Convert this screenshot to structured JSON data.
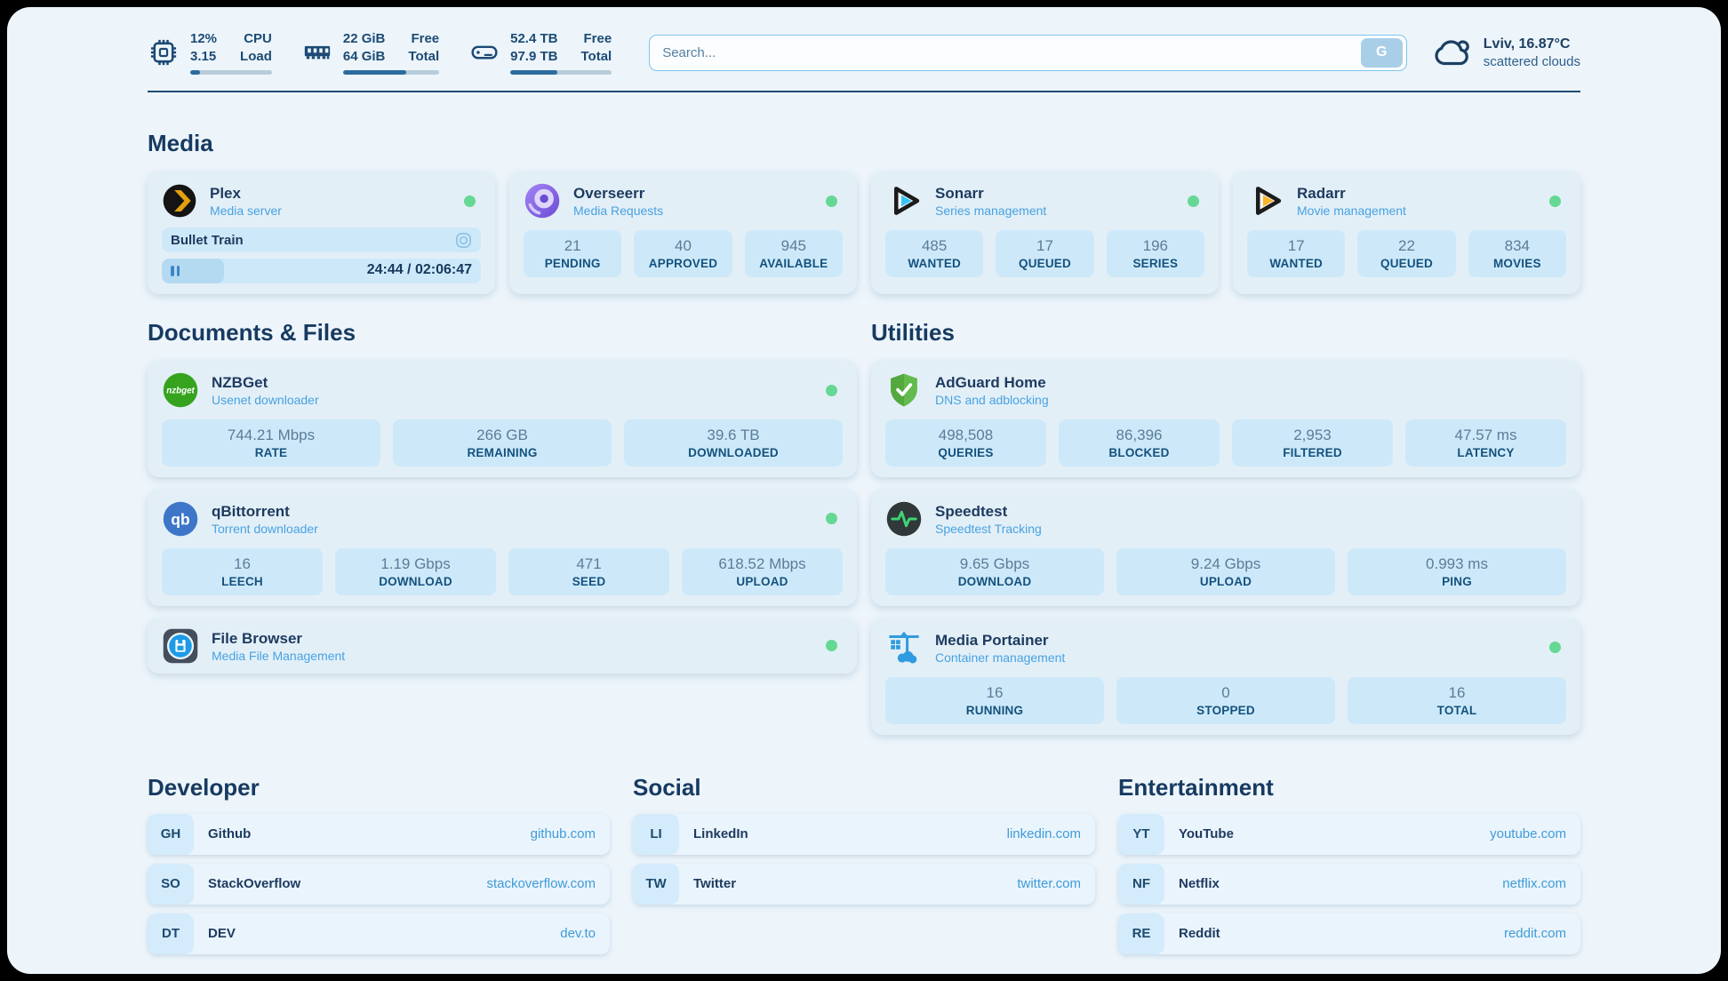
{
  "colors": {
    "panel_bg": "#edf5fb",
    "card_bg": "#e3eff7",
    "stat_bg": "#cde9f9",
    "accent_navy": "#1d3a5f",
    "subtitle_blue": "#47a2e2",
    "link_blue": "#3f9bd8",
    "status_green": "#65d894",
    "progress_fill": "#2d6b9e"
  },
  "topbar": {
    "cpu": {
      "pct": "12%",
      "load": "3.15",
      "label1": "CPU",
      "label2": "Load",
      "progress_pct": 12
    },
    "memory": {
      "free": "22 GiB",
      "total": "64 GiB",
      "label1": "Free",
      "label2": "Total",
      "progress_pct": 66
    },
    "disk": {
      "free": "52.4 TB",
      "total": "97.9 TB",
      "label1": "Free",
      "label2": "Total",
      "progress_pct": 46
    },
    "search": {
      "placeholder": "Search...",
      "button_label": "G"
    },
    "weather": {
      "location": "Lviv, 16.87°C",
      "condition": "scattered clouds"
    }
  },
  "media": {
    "heading": "Media",
    "plex": {
      "name": "Plex",
      "subtitle": "Media server",
      "now_playing": "Bullet Train",
      "time": "24:44 / 02:06:47",
      "progress_pct": 19.5
    },
    "overseerr": {
      "name": "Overseerr",
      "subtitle": "Media Requests",
      "stats": [
        {
          "value": "21",
          "label": "PENDING"
        },
        {
          "value": "40",
          "label": "APPROVED"
        },
        {
          "value": "945",
          "label": "AVAILABLE"
        }
      ]
    },
    "sonarr": {
      "name": "Sonarr",
      "subtitle": "Series management",
      "stats": [
        {
          "value": "485",
          "label": "WANTED"
        },
        {
          "value": "17",
          "label": "QUEUED"
        },
        {
          "value": "196",
          "label": "SERIES"
        }
      ]
    },
    "radarr": {
      "name": "Radarr",
      "subtitle": "Movie management",
      "stats": [
        {
          "value": "17",
          "label": "WANTED"
        },
        {
          "value": "22",
          "label": "QUEUED"
        },
        {
          "value": "834",
          "label": "MOVIES"
        }
      ]
    }
  },
  "documents": {
    "heading": "Documents & Files",
    "nzbget": {
      "name": "NZBGet",
      "subtitle": "Usenet downloader",
      "stats": [
        {
          "value": "744.21 Mbps",
          "label": "RATE"
        },
        {
          "value": "266 GB",
          "label": "REMAINING"
        },
        {
          "value": "39.6 TB",
          "label": "DOWNLOADED"
        }
      ]
    },
    "qbittorrent": {
      "name": "qBittorrent",
      "subtitle": "Torrent downloader",
      "stats": [
        {
          "value": "16",
          "label": "LEECH"
        },
        {
          "value": "1.19 Gbps",
          "label": "DOWNLOAD"
        },
        {
          "value": "471",
          "label": "SEED"
        },
        {
          "value": "618.52 Mbps",
          "label": "UPLOAD"
        }
      ]
    },
    "filebrowser": {
      "name": "File Browser",
      "subtitle": "Media File Management"
    }
  },
  "utilities": {
    "heading": "Utilities",
    "adguard": {
      "name": "AdGuard Home",
      "subtitle": "DNS and adblocking",
      "stats": [
        {
          "value": "498,508",
          "label": "QUERIES"
        },
        {
          "value": "86,396",
          "label": "BLOCKED"
        },
        {
          "value": "2,953",
          "label": "FILTERED"
        },
        {
          "value": "47.57 ms",
          "label": "LATENCY"
        }
      ]
    },
    "speedtest": {
      "name": "Speedtest",
      "subtitle": "Speedtest Tracking",
      "stats": [
        {
          "value": "9.65 Gbps",
          "label": "DOWNLOAD"
        },
        {
          "value": "9.24 Gbps",
          "label": "UPLOAD"
        },
        {
          "value": "0.993 ms",
          "label": "PING"
        }
      ]
    },
    "portainer": {
      "name": "Media Portainer",
      "subtitle": "Container management",
      "stats": [
        {
          "value": "16",
          "label": "RUNNING"
        },
        {
          "value": "0",
          "label": "STOPPED"
        },
        {
          "value": "16",
          "label": "TOTAL"
        }
      ]
    }
  },
  "links": {
    "developer": {
      "heading": "Developer",
      "items": [
        {
          "tag": "GH",
          "name": "Github",
          "url": "github.com"
        },
        {
          "tag": "SO",
          "name": "StackOverflow",
          "url": "stackoverflow.com"
        },
        {
          "tag": "DT",
          "name": "DEV",
          "url": "dev.to"
        }
      ]
    },
    "social": {
      "heading": "Social",
      "items": [
        {
          "tag": "LI",
          "name": "LinkedIn",
          "url": "linkedin.com"
        },
        {
          "tag": "TW",
          "name": "Twitter",
          "url": "twitter.com"
        }
      ]
    },
    "entertainment": {
      "heading": "Entertainment",
      "items": [
        {
          "tag": "YT",
          "name": "YouTube",
          "url": "youtube.com"
        },
        {
          "tag": "NF",
          "name": "Netflix",
          "url": "netflix.com"
        },
        {
          "tag": "RE",
          "name": "Reddit",
          "url": "reddit.com"
        }
      ]
    }
  }
}
